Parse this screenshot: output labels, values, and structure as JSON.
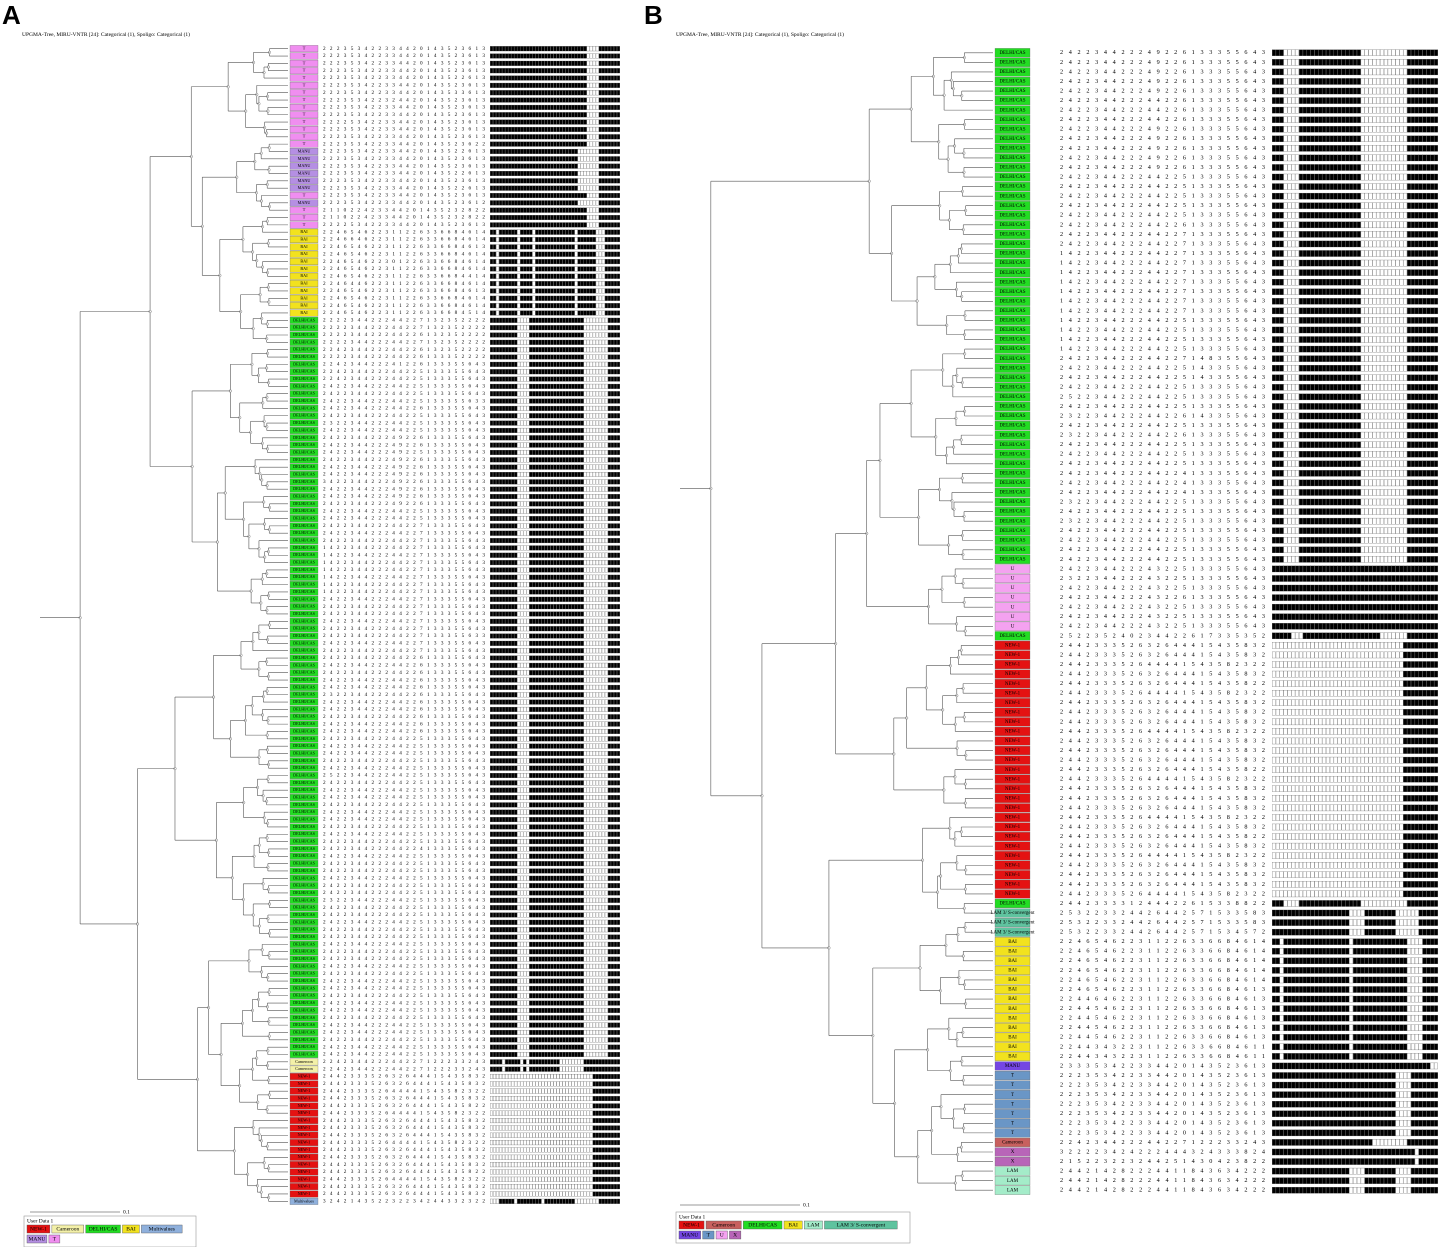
{
  "panels": [
    {
      "letter": "A",
      "title": "UPGMA-Tree, MIRU-VNTR [24]: Categorical (1), Spoligo: Categorical (1)",
      "scale_label": "0.1",
      "legend_title": "User Data 1",
      "legend": [
        {
          "name": "NEW-1",
          "color": "#e41212"
        },
        {
          "name": "Cameroon",
          "color": "#f3f0a8"
        },
        {
          "name": "DELHI/CAS",
          "color": "#22dd22"
        },
        {
          "name": "BAI",
          "color": "#f2e21e"
        },
        {
          "name": "Multivalues",
          "color": "#8fb0dc"
        },
        {
          "name": "MANU",
          "color": "#b58fe3"
        },
        {
          "name": "T",
          "color": "#f08ef0"
        }
      ],
      "groups": [
        {
          "label": "T",
          "spoligo": "1111111111111111111111111111111100001111111",
          "miru": [
            "222353422334420143523613",
            "222353422334420143523613",
            "222353422334420143523613",
            "222353422334420143523613",
            "222353422334420143522613",
            "222353422334420143523613",
            "222353422334420143533613",
            "222353422324420143523613",
            "222353422334420143523613",
            "222353422334420143523613",
            "222253422334420143523613",
            "222353422334420143523613",
            "222353422334420143523613",
            "222353422334420143523622"
          ]
        },
        {
          "label": "MANU",
          "spoligo": "1111111111111111111111111111100000001111111",
          "miru": [
            "222353422334420143522613",
            "222353422334420143523613",
            "222353422334420143523613",
            "222353422334420143522613",
            "222353422334420143523613",
            "222353422334420143522613"
          ]
        },
        {
          "label": "T",
          "spoligo": "1111111111111111111111111111111100001111111",
          "miru": [
            "222353422334420143523613"
          ]
        },
        {
          "label": "MANU",
          "spoligo": "1111111111111111111111111111100000001111111",
          "miru": [
            "222353422334420143523612"
          ]
        },
        {
          "label": "T",
          "spoligo": "1111111111111111111111111111111100001111111",
          "miru": [
            "211022423344201435232822",
            "211022423344201435232822",
            "222253422334420143523613"
          ]
        },
        {
          "label": "BAI",
          "spoligo": "1101111110111101111111111111011111100011111",
          "miru": [
            "224654622311226336684614",
            "224664622311226336684614",
            "224654622311226336684613",
            "224654622311226336684614",
            "224654622301226336684614",
            "224654622311226336684614",
            "224654622311226336684414",
            "224644622311226336684614",
            "224654622311226336684613",
            "224654622311226336684614",
            "224654622311226336684614",
            "224654622311226336684514"
          ]
        },
        {
          "label": "DELHI/CAS",
          "spoligo": "1111111110000111111111111111111000000001111",
          "miru": [
            "222234422244227132352222",
            "222234422244227132352222",
            "222234422244226132352222",
            "222234422244227132352222",
            "224234422244226132352222",
            "222234422244226133352222",
            "224234422241226133355643",
            "224234422244225133355643",
            "224234422244225133355643",
            "242234422244225133355643",
            "242234422244225133355643",
            "242234422244225133355633",
            "242234422244226133355643",
            "242234422244225133355643",
            "232234422244225133355643",
            "242234422244225133355643",
            "242234422249226133355643",
            "242234422249226133355643",
            "242234422249225133355643",
            "242234422249226133355643",
            "242234422249226133355643",
            "242234422249226133355643",
            "342234422249226133355643",
            "242234422249226133355643",
            "242234422249226133355643",
            "242234422249226133355643",
            "242234422244225133355643",
            "242234422244225133355643",
            "242234422244227133355643",
            "242234422244227133355643",
            "242234422244227133355643",
            "142234422244227133355643",
            "142234422244227133355643",
            "142234422244227133355643",
            "142234422244227133355643",
            "142234422244227133355643",
            "142234422244227133355643",
            "142234422244227133355643",
            "242234422244227133355643",
            "242234422244227133355643",
            "242234422244227133355643",
            "242234422244227133355643",
            "242234422244227133355643",
            "242234422244227133355633",
            "242234422244227133355643",
            "242234422244227133355643",
            "242234422244226133355643",
            "242234422244226133355643",
            "242234422244226133355643",
            "242234422244226133355643",
            "242234422244226133355643",
            "232234422244226133355643",
            "242234422244226133355643",
            "242234422244226133355643",
            "242234422244226133355643",
            "242234422244226133355643",
            "242234422244226133355643",
            "242234422244225133355643",
            "242234422244225133355643",
            "242234422244225133355643",
            "242234422244225133355643",
            "242234422244225133355643",
            "252234422244225133355643",
            "242234422244225133355643",
            "242234422244225133355643",
            "242234422244225133355643",
            "242234422244225133355643",
            "242234422244225133355643",
            "242234422244225133355643",
            "242234422244225133355643",
            "242234422244225133355643",
            "242234422244225133355643",
            "242234422244224133355643",
            "242234422244225133355643",
            "242234422244225133355643",
            "242234422244225133355643",
            "242234422244225133355643",
            "242234422244225133355643",
            "242234422244225133355643",
            "232234422244225133355643",
            "242234422244225133355643",
            "242234422244225133355643",
            "242234422244225133355643",
            "242234422244225133355643",
            "242234422244225133355643",
            "242234422244225133355643",
            "242234422244225133355643",
            "242234422244225133355643",
            "242234422244225133355643",
            "242234422244225133355643",
            "242234422244225133355643",
            "242234422244225133355643",
            "242234422244225133355643",
            "242234422244225133355643",
            "242234422244225133355643",
            "242234422244225133355643",
            "242234422244225133355643",
            "242234422244225133355643",
            "242234422244225133355643",
            "242234422244225133355643",
            "242234422244225133355643"
          ]
        },
        {
          "label": "Cameroon",
          "spoligo": "1111011111010111111111100000000111111111111",
          "miru": [
            "224234422244227122233243",
            "224234422244227122233243"
          ]
        },
        {
          "label": "NEW-1",
          "spoligo": "0000000000000000000000000000000000111111111",
          "miru": [
            "244233352632644415435832",
            "244233352632644415435832",
            "244233352644441543582322",
            "244233352632644415435832",
            "244233352632644415435822",
            "244233352644441543582322",
            "244233352632644415435832",
            "244233352632644415435832",
            "244233352632644415435832",
            "244233352644441543582322",
            "244233352632644415435832",
            "244233352632644415435832",
            "244233352632644415435832",
            "244233352632644415435822",
            "244233352644441543582322",
            "244233352632644415435832",
            "244233352632644415435832"
          ]
        },
        {
          "label": "Multivalues",
          "spoligo": "0001111101111111101111111111000000001111111",
          "miru": [
            "324214352232234244332322"
          ]
        }
      ]
    },
    {
      "letter": "B",
      "title": "UPGMA-Tree, MIRU-VNTR [24]: Categorical (1), Spoligo: Categorical (1)",
      "scale_label": "0.1",
      "legend_title": "User Data 1",
      "legend": [
        {
          "name": "NEW-1",
          "color": "#e41212"
        },
        {
          "name": "Cameroon",
          "color": "#c8605e"
        },
        {
          "name": "DELHI/CAS",
          "color": "#22dd22"
        },
        {
          "name": "BAI",
          "color": "#f2e21e"
        },
        {
          "name": "LAM",
          "color": "#a4ecc9"
        },
        {
          "name": "LAM 3/ S-convergent",
          "color": "#5fc39f"
        },
        {
          "name": "MANU",
          "color": "#7446e3"
        },
        {
          "name": "T",
          "color": "#6a96c6"
        },
        {
          "name": "U",
          "color": "#f4a2f0"
        },
        {
          "name": "X",
          "color": "#b865b8"
        }
      ],
      "groups": [
        {
          "label": "DELHI/CAS",
          "spoligo": "1110000111111111111111100000000000011111111",
          "miru": [
            "242234422249226133355643",
            "242234422249226133355643",
            "242234422249226133355643",
            "242234422249226133355643",
            "242234422249226133355643",
            "242234422244226133355643",
            "242234422244226133355643",
            "242234422244226133355643",
            "242234422249226133355643",
            "242234422249226133355643",
            "242234422249226133355643",
            "242234422249226133355643",
            "242234422249226133355643",
            "242234422244225133355643",
            "242234422244225133355643",
            "242234422244225133355643",
            "242234422244225133355643",
            "242234422244225133355643",
            "242234422244226133355643",
            "242234422244227133355643",
            "242234422244227133355643",
            "142234422244227133355643",
            "142234422244227133355643",
            "142234422244227133355643",
            "142234422244227133355643",
            "142234422244227133355643",
            "142234422244227133355643",
            "142234422244227133355643",
            "142234422244225133355643",
            "142234422244225133355643",
            "142234422244225133355643",
            "142234422244225133355643",
            "242234422244227148355643",
            "242234422244225143355643",
            "242234422244225143355643",
            "242234422244225133355643",
            "252234422244225133355643",
            "242234422244225133355643",
            "232234422244226143355643",
            "242234422244225133355643",
            "232234422244226133355643",
            "242234422244225133355643",
            "242234422244225133355643",
            "242234422244225133355643",
            "242234422244224133355643",
            "242234422244224133355643",
            "242234422244224133355643",
            "232234422244225133355643",
            "242234422244225133355643",
            "232234422244225133355643",
            "242234422244225133355643",
            "242234422244225133355643",
            "242234422244225133355643",
            "242234422244225133355643"
          ]
        },
        {
          "label": "U",
          "spoligo": "1111111111111111111111111111111111111111111",
          "miru": [
            "242234422243225133355643",
            "232234422243225133355643",
            "242234422243225133355643",
            "242234422243226133355643",
            "242234422243225133355643",
            "242234422243225133355643",
            "242234422243225133355643"
          ]
        },
        {
          "label": "DELHI/CAS",
          "spoligo": "1111100011111111111111111111000000011111111",
          "miru": [
            "252235240234422617335352"
          ]
        },
        {
          "label": "NEW-1",
          "spoligo": "0000000000000000000000000000000000111111111",
          "miru": [
            "244233352632644415435832",
            "244233352632644415435832",
            "244233352644441543582322",
            "244233352632644415435832",
            "244233352632644415435822",
            "244233352644441543582322",
            "244233352632644415435832",
            "244233352632644415435832",
            "244233352632644415435832",
            "244233352644441543582322",
            "244233352632644415435832",
            "244233352632644415435832",
            "244233352632644415435832",
            "244233352632644415435822",
            "244233352644441543582322",
            "244233352632644415435832",
            "244233352632644415435832",
            "244233352632644415435832",
            "244233352644441543582322",
            "244233352632644415435832",
            "244233352632644415435822",
            "244233352632644415435832",
            "244233352644441543582322",
            "244233352632644415435832",
            "244233352632644415435832",
            "244233352632644415435832",
            "244233352644441543582322"
          ]
        },
        {
          "label": "DELHI/CAS",
          "spoligo": "1110000111111111111111100000000000011111111",
          "miru": [
            "244233331244422615338822"
          ]
        },
        {
          "label": "LAM 3/ S-convergent",
          "spoligo": "1111111111111111111100001111111100000011111",
          "miru": [
            "253223324426442571533583",
            "253223324426442571533583",
            "253223324426442571534572"
          ]
        },
        {
          "label": "BAI",
          "spoligo": "1101111111111111111101111111111111100001111",
          "miru": [
            "224654622311226336684614",
            "224654622311226336684614",
            "224654622311226336684614",
            "224654622311226336684614",
            "224654622311226336684614",
            "224654622311226336684613",
            "224464622311226336684613",
            "224454622311226336684613",
            "224454622311226336684613",
            "224454622311226336684613",
            "224454622311226336684613",
            "224434322311226336684611",
            "224434322311226336684611"
          ]
        },
        {
          "label": "MANU",
          "spoligo": "1111111111111111111111111111111111111111100",
          "miru": [
            "233353422334420143523613"
          ]
        },
        {
          "label": "T",
          "spoligo": "1111111111111111111111111111111100001111111",
          "miru": [
            "222353422334420143523613",
            "222353422334420143523613",
            "222353422334420143523613",
            "222353422334420143523613",
            "222353422334420143523613",
            "222353422334420143523613",
            "222353422334420143523613"
          ]
        },
        {
          "label": "Cameroon",
          "spoligo": "1111111111111111111111111100000000011111111",
          "miru": [
            "224234422244227122233243"
          ]
        },
        {
          "label": "X",
          "spoligo": "1111111111111111111111111111111111111011111",
          "miru": [
            "322223424222444324333824",
            "215223223244251430423822"
          ]
        },
        {
          "label": "LAM",
          "spoligo": "1111111111111111111100001111111100001111111",
          "miru": [
            "244214282224411843634222",
            "244214282224411843634222",
            "244214282224411843634222"
          ]
        }
      ]
    }
  ]
}
